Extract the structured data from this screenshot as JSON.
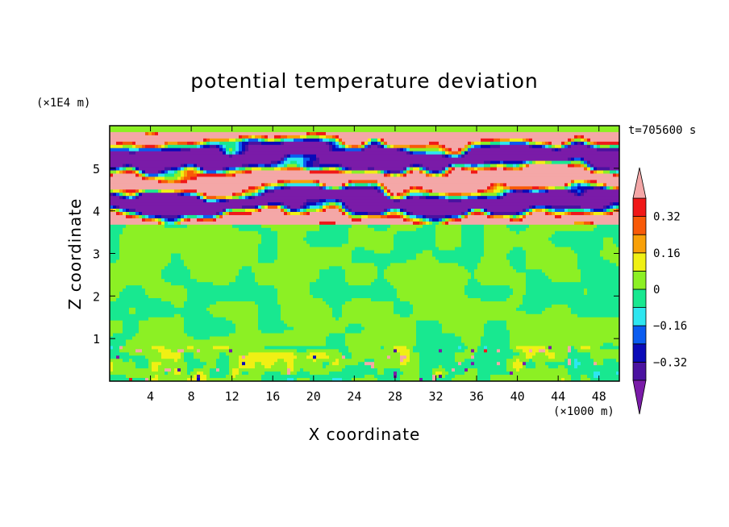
{
  "title": "potential temperature deviation",
  "time_label": "t=705600 s",
  "colors": {
    "over": "#f4a7a7",
    "under": "#7a1ba8",
    "bands": [
      "#4a12a0",
      "#0a0ab8",
      "#0a5cf0",
      "#2ee6f0",
      "#18e890",
      "#8cf024",
      "#f0f014",
      "#f8a008",
      "#f85a08",
      "#f01818"
    ]
  },
  "chart_data": {
    "type": "heatmap",
    "title": "potential temperature deviation",
    "xlabel": "X coordinate",
    "ylabel": "Z coordinate",
    "x_unit": "(×1000 m)",
    "y_unit": "(×1E4 m)",
    "xlim": [
      0,
      50
    ],
    "ylim": [
      0,
      6
    ],
    "x_ticks": [
      "4",
      "8",
      "12",
      "16",
      "20",
      "24",
      "28",
      "32",
      "36",
      "40",
      "44",
      "48"
    ],
    "y_ticks": [
      "1",
      "2",
      "3",
      "4",
      "5"
    ],
    "colorbar": {
      "levels": [
        -0.4,
        -0.32,
        -0.24,
        -0.16,
        -0.08,
        0,
        0.08,
        0.16,
        0.24,
        0.32,
        0.4
      ],
      "labels": [
        "0.32",
        "0.16",
        "0",
        "−0.16",
        "−0.32"
      ],
      "extend": "both"
    },
    "regions": [
      {
        "z_range": [
          0,
          0.8
        ],
        "description": "weak mixed deviations, values mostly 0 to 0.08, isolated extremes"
      },
      {
        "z_range": [
          0.8,
          3.7
        ],
        "description": "values near 0 (0 to 0.08 band dominant)"
      },
      {
        "z_range": [
          3.7,
          5.8
        ],
        "description": "alternating strong layers exceeding +0.4 and below -0.4"
      },
      {
        "z_range": [
          5.8,
          6
        ],
        "description": "values near 0"
      }
    ]
  }
}
